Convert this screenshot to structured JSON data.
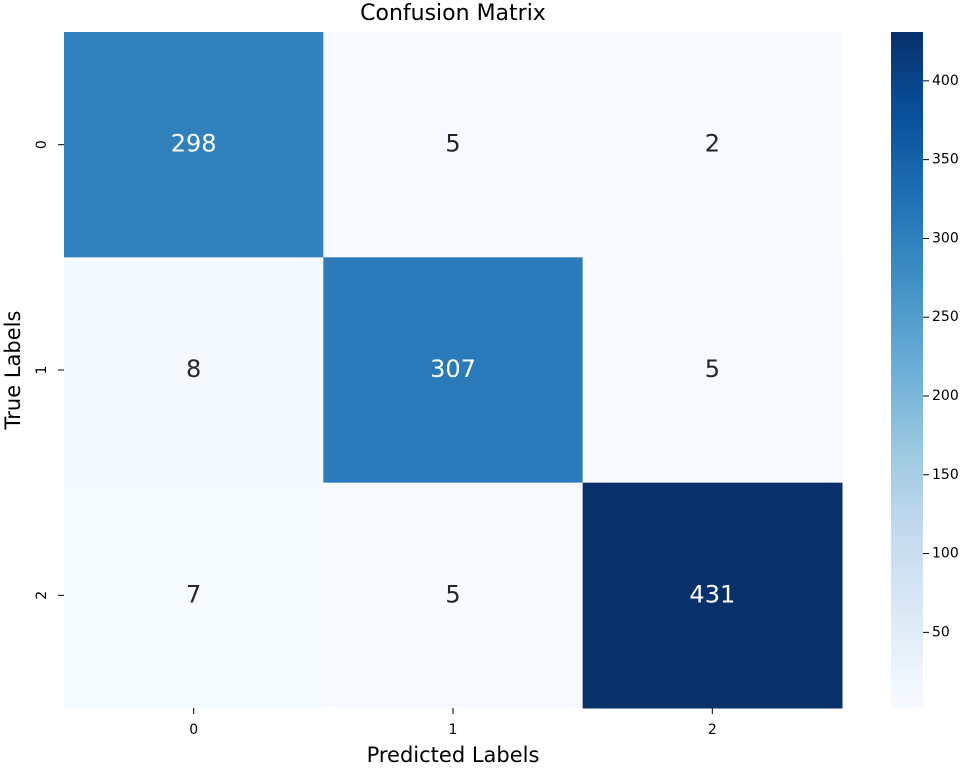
{
  "chart_data": {
    "type": "heatmap",
    "title": "Confusion Matrix",
    "x_label": "Predicted Labels",
    "y_label": "True Labels",
    "x_categories": [
      "0",
      "1",
      "2"
    ],
    "y_categories": [
      "0",
      "1",
      "2"
    ],
    "values": [
      [
        298,
        5,
        2
      ],
      [
        8,
        307,
        5
      ],
      [
        7,
        5,
        431
      ]
    ],
    "colormap": "Blues",
    "clim": [
      2,
      431
    ],
    "cticks": [
      50,
      100,
      150,
      200,
      250,
      300,
      350,
      400
    ]
  }
}
